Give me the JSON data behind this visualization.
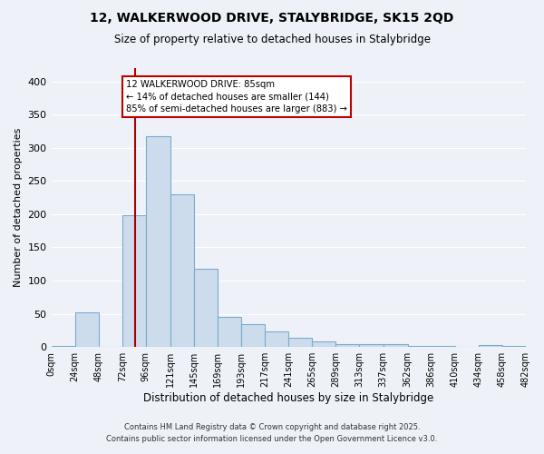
{
  "title": "12, WALKERWOOD DRIVE, STALYBRIDGE, SK15 2QD",
  "subtitle": "Size of property relative to detached houses in Stalybridge",
  "xlabel": "Distribution of detached houses by size in Stalybridge",
  "ylabel": "Number of detached properties",
  "bar_color": "#ccdcec",
  "bar_edge_color": "#7aabcc",
  "vline_x": 85,
  "vline_color": "#aa0000",
  "bin_edges": [
    0,
    24,
    48,
    72,
    96,
    121,
    145,
    169,
    193,
    217,
    241,
    265,
    289,
    313,
    337,
    362,
    386,
    410,
    434,
    458,
    482
  ],
  "bin_labels": [
    "0sqm",
    "24sqm",
    "48sqm",
    "72sqm",
    "96sqm",
    "121sqm",
    "145sqm",
    "169sqm",
    "193sqm",
    "217sqm",
    "241sqm",
    "265sqm",
    "289sqm",
    "313sqm",
    "337sqm",
    "362sqm",
    "386sqm",
    "410sqm",
    "434sqm",
    "458sqm",
    "482sqm"
  ],
  "counts": [
    2,
    52,
    0,
    198,
    317,
    230,
    118,
    46,
    35,
    24,
    14,
    9,
    5,
    4,
    4,
    2,
    1,
    0,
    3,
    2
  ],
  "ylim": [
    0,
    420
  ],
  "yticks": [
    0,
    50,
    100,
    150,
    200,
    250,
    300,
    350,
    400
  ],
  "annotation_title": "12 WALKERWOOD DRIVE: 85sqm",
  "annotation_line1": "← 14% of detached houses are smaller (144)",
  "annotation_line2": "85% of semi-detached houses are larger (883) →",
  "annotation_box_color": "#ffffff",
  "annotation_box_edge": "#bb0000",
  "footer1": "Contains HM Land Registry data © Crown copyright and database right 2025.",
  "footer2": "Contains public sector information licensed under the Open Government Licence v3.0.",
  "background_color": "#eef2f8",
  "grid_color": "#ffffff"
}
